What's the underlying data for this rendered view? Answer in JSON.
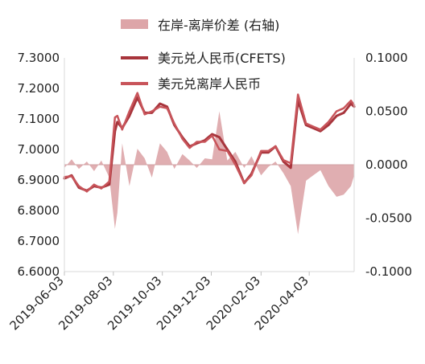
{
  "chart_data": {
    "type": "line",
    "title": "",
    "xlabel": "",
    "ylabel": "",
    "y_left": {
      "lim": [
        6.6,
        7.3
      ],
      "ticks": [
        "6.6000",
        "6.7000",
        "6.8000",
        "6.9000",
        "7.0000",
        "7.1000",
        "7.2000",
        "7.3000"
      ]
    },
    "y_right": {
      "lim": [
        -0.1,
        0.1
      ],
      "ticks": [
        "-0.1000",
        "-0.0500",
        "0.0000",
        "0.0500",
        "0.1000"
      ]
    },
    "x_range": [
      "2019-06-03",
      "2020-05-29"
    ],
    "x_ticks": [
      "2019-06-03",
      "2019-08-03",
      "2019-10-03",
      "2019-12-03",
      "2020-02-03",
      "2020-04-03"
    ],
    "grid": false,
    "legend_position": "top",
    "series": [
      {
        "name": "在岸-离岸价差 (右轴)",
        "kind": "area",
        "axis": "right",
        "color": "#dda5a8",
        "x": [
          "2019-06-03",
          "2019-06-12",
          "2019-06-21",
          "2019-07-01",
          "2019-07-10",
          "2019-07-19",
          "2019-07-29",
          "2019-08-05",
          "2019-08-08",
          "2019-08-14",
          "2019-08-23",
          "2019-09-02",
          "2019-09-11",
          "2019-09-20",
          "2019-09-30",
          "2019-10-09",
          "2019-10-18",
          "2019-10-28",
          "2019-11-06",
          "2019-11-15",
          "2019-11-25",
          "2019-12-04",
          "2019-12-13",
          "2019-12-23",
          "2020-01-02",
          "2020-01-13",
          "2020-01-22",
          "2020-02-03",
          "2020-02-12",
          "2020-02-21",
          "2020-03-02",
          "2020-03-11",
          "2020-03-20",
          "2020-03-30",
          "2020-04-08",
          "2020-04-17",
          "2020-04-27",
          "2020-05-07",
          "2020-05-16",
          "2020-05-25",
          "2020-05-29"
        ],
        "values": [
          -0.003,
          0.005,
          -0.004,
          0.003,
          -0.006,
          0.004,
          -0.012,
          -0.06,
          -0.045,
          0.02,
          -0.02,
          0.015,
          0.006,
          -0.012,
          0.02,
          0.012,
          -0.004,
          0.01,
          0.004,
          -0.003,
          0.006,
          0.005,
          0.05,
          0.004,
          0.012,
          -0.003,
          0.008,
          -0.01,
          -0.002,
          0.003,
          -0.008,
          -0.02,
          -0.065,
          -0.015,
          -0.01,
          -0.005,
          -0.02,
          -0.03,
          -0.028,
          -0.02,
          -0.01
        ]
      },
      {
        "name": "美元兑人民币(CFETS)",
        "kind": "line",
        "axis": "left",
        "color": "#a8353c",
        "x": [
          "2019-06-03",
          "2019-06-12",
          "2019-06-21",
          "2019-07-01",
          "2019-07-10",
          "2019-07-19",
          "2019-07-29",
          "2019-08-05",
          "2019-08-08",
          "2019-08-14",
          "2019-08-23",
          "2019-09-02",
          "2019-09-11",
          "2019-09-20",
          "2019-09-30",
          "2019-10-09",
          "2019-10-18",
          "2019-10-28",
          "2019-11-06",
          "2019-11-15",
          "2019-11-25",
          "2019-12-04",
          "2019-12-13",
          "2019-12-23",
          "2020-01-02",
          "2020-01-13",
          "2020-01-22",
          "2020-02-03",
          "2020-02-12",
          "2020-02-21",
          "2020-03-02",
          "2020-03-11",
          "2020-03-20",
          "2020-03-30",
          "2020-04-08",
          "2020-04-17",
          "2020-04-27",
          "2020-05-07",
          "2020-05-16",
          "2020-05-25",
          "2020-05-29"
        ],
        "values": [
          6.905,
          6.915,
          6.875,
          6.865,
          6.88,
          6.875,
          6.885,
          7.06,
          7.09,
          7.07,
          7.11,
          7.17,
          7.12,
          7.12,
          7.15,
          7.14,
          7.08,
          7.04,
          7.01,
          7.02,
          7.03,
          7.05,
          7.04,
          7.0,
          6.96,
          6.89,
          6.92,
          6.99,
          6.99,
          7.01,
          6.96,
          6.94,
          7.16,
          7.08,
          7.07,
          7.06,
          7.08,
          7.11,
          7.12,
          7.15,
          7.14
        ]
      },
      {
        "name": "美元兑离岸人民币",
        "kind": "line",
        "axis": "left",
        "color": "#c8545a",
        "x": [
          "2019-06-03",
          "2019-06-12",
          "2019-06-21",
          "2019-07-01",
          "2019-07-10",
          "2019-07-19",
          "2019-07-29",
          "2019-08-05",
          "2019-08-08",
          "2019-08-14",
          "2019-08-23",
          "2019-09-02",
          "2019-09-11",
          "2019-09-20",
          "2019-09-30",
          "2019-10-09",
          "2019-10-18",
          "2019-10-28",
          "2019-11-06",
          "2019-11-15",
          "2019-11-25",
          "2019-12-04",
          "2019-12-13",
          "2019-12-23",
          "2020-01-02",
          "2020-01-13",
          "2020-01-22",
          "2020-02-03",
          "2020-02-12",
          "2020-02-21",
          "2020-03-02",
          "2020-03-11",
          "2020-03-20",
          "2020-03-30",
          "2020-04-08",
          "2020-04-17",
          "2020-04-27",
          "2020-05-07",
          "2020-05-16",
          "2020-05-25",
          "2020-05-29"
        ],
        "values": [
          6.91,
          6.912,
          6.88,
          6.862,
          6.885,
          6.872,
          6.895,
          7.105,
          7.11,
          7.065,
          7.125,
          7.185,
          7.115,
          7.125,
          7.14,
          7.135,
          7.085,
          7.035,
          7.005,
          7.025,
          7.025,
          7.045,
          7.0,
          6.995,
          6.95,
          6.89,
          6.915,
          6.995,
          6.995,
          7.01,
          6.965,
          6.955,
          7.18,
          7.085,
          7.075,
          7.065,
          7.09,
          7.125,
          7.135,
          7.16,
          7.145
        ]
      }
    ]
  }
}
